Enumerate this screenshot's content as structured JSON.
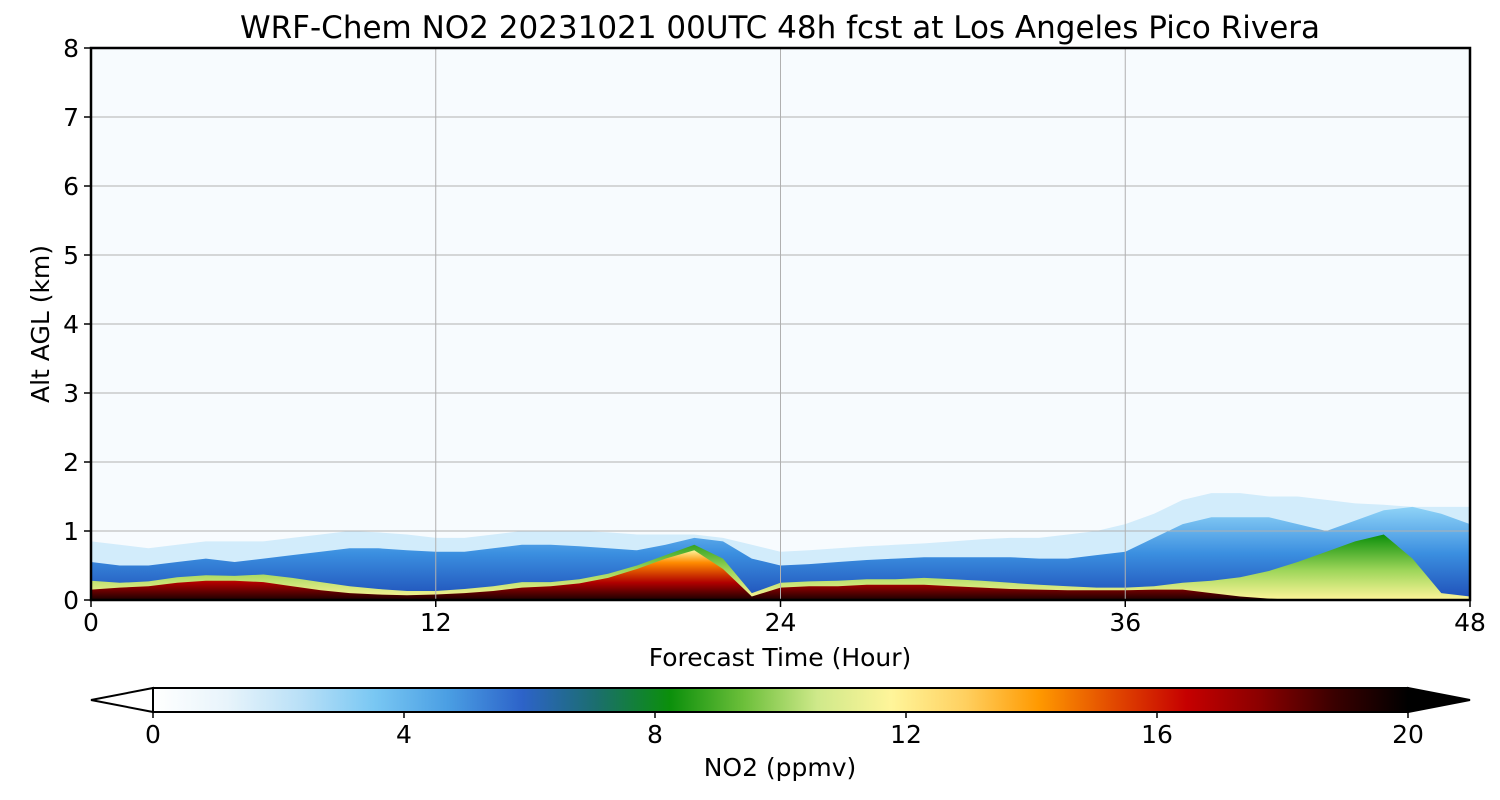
{
  "chart_data": {
    "type": "heatmap",
    "title": "WRF-Chem NO2  20231021 00UTC 48h fcst at Los Angeles Pico Rivera",
    "xlabel": "Forecast Time (Hour)",
    "ylabel": "Alt AGL (km)",
    "xlim": [
      0,
      48
    ],
    "ylim": [
      0,
      8
    ],
    "xticks": [
      0,
      12,
      24,
      36,
      48
    ],
    "yticks": [
      0,
      1,
      2,
      3,
      4,
      5,
      6,
      7,
      8
    ],
    "grid": true,
    "colorbar": {
      "label": "NO2  (ppmv)",
      "range": [
        0,
        20
      ],
      "ticks": [
        0,
        4,
        8,
        12,
        16,
        20
      ],
      "extend": "both",
      "colors": [
        "#ffffff",
        "#e8f4fb",
        "#b9e0f7",
        "#79c7f3",
        "#4a9ee3",
        "#2d63c9",
        "#1b6e6e",
        "#0b8f0b",
        "#6cbf3a",
        "#cfe98a",
        "#fff59a",
        "#ffd060",
        "#ff9900",
        "#e24a00",
        "#c60000",
        "#8a0000",
        "#3a0000",
        "#000000"
      ]
    },
    "background_color": "#f7fbfe",
    "series": [
      {
        "name": "layer_top",
        "x": [
          0,
          1,
          2,
          3,
          4,
          5,
          6,
          7,
          8,
          9,
          10,
          11,
          12,
          13,
          14,
          15,
          16,
          17,
          18,
          19,
          20,
          21,
          22,
          23,
          24,
          25,
          26,
          27,
          28,
          29,
          30,
          31,
          32,
          33,
          34,
          35,
          36,
          37,
          38,
          39,
          40,
          41,
          42,
          43,
          44,
          45,
          46,
          47,
          48
        ],
        "values": [
          0.85,
          0.8,
          0.75,
          0.8,
          0.85,
          0.85,
          0.85,
          0.9,
          0.95,
          1.0,
          0.98,
          0.95,
          0.9,
          0.9,
          0.95,
          1.0,
          1.0,
          1.0,
          0.98,
          0.95,
          0.95,
          0.95,
          0.9,
          0.8,
          0.7,
          0.72,
          0.75,
          0.78,
          0.8,
          0.82,
          0.85,
          0.88,
          0.9,
          0.9,
          0.95,
          1.0,
          1.1,
          1.25,
          1.45,
          1.55,
          1.55,
          1.5,
          1.5,
          1.45,
          1.4,
          1.38,
          1.35,
          1.35,
          1.35
        ]
      },
      {
        "name": "blue_core_top",
        "x": [
          0,
          1,
          2,
          3,
          4,
          5,
          6,
          7,
          8,
          9,
          10,
          11,
          12,
          13,
          14,
          15,
          16,
          17,
          18,
          19,
          20,
          21,
          22,
          23,
          24,
          25,
          26,
          27,
          28,
          29,
          30,
          31,
          32,
          33,
          34,
          35,
          36,
          37,
          38,
          39,
          40,
          41,
          42,
          43,
          44,
          45,
          46,
          47,
          48
        ],
        "values": [
          0.55,
          0.5,
          0.5,
          0.55,
          0.6,
          0.55,
          0.6,
          0.65,
          0.7,
          0.75,
          0.75,
          0.72,
          0.7,
          0.7,
          0.75,
          0.8,
          0.8,
          0.78,
          0.75,
          0.72,
          0.8,
          0.9,
          0.85,
          0.6,
          0.5,
          0.52,
          0.55,
          0.58,
          0.6,
          0.62,
          0.62,
          0.62,
          0.62,
          0.6,
          0.6,
          0.65,
          0.7,
          0.9,
          1.1,
          1.2,
          1.2,
          1.2,
          1.1,
          1.0,
          1.15,
          1.3,
          1.35,
          1.25,
          1.1
        ]
      },
      {
        "name": "green_band_top",
        "x": [
          0,
          1,
          2,
          3,
          4,
          5,
          6,
          7,
          8,
          9,
          10,
          11,
          12,
          13,
          14,
          15,
          16,
          17,
          18,
          19,
          20,
          21,
          22,
          23,
          24,
          25,
          26,
          27,
          28,
          29,
          30,
          31,
          32,
          33,
          34,
          35,
          36,
          37,
          38,
          39,
          40,
          41,
          42,
          43,
          44,
          45,
          46,
          47,
          48
        ],
        "values": [
          0.28,
          0.25,
          0.27,
          0.33,
          0.36,
          0.35,
          0.37,
          0.32,
          0.26,
          0.2,
          0.16,
          0.13,
          0.13,
          0.16,
          0.2,
          0.26,
          0.26,
          0.3,
          0.38,
          0.5,
          0.65,
          0.8,
          0.6,
          0.1,
          0.25,
          0.27,
          0.28,
          0.3,
          0.3,
          0.32,
          0.3,
          0.28,
          0.25,
          0.22,
          0.2,
          0.18,
          0.18,
          0.2,
          0.25,
          0.28,
          0.33,
          0.42,
          0.55,
          0.7,
          0.85,
          0.95,
          0.6,
          0.1,
          0.05
        ]
      },
      {
        "name": "polluted_core_top",
        "x": [
          0,
          1,
          2,
          3,
          4,
          5,
          6,
          7,
          8,
          9,
          10,
          11,
          12,
          13,
          14,
          15,
          16,
          17,
          18,
          19,
          20,
          21,
          22,
          23,
          24,
          25,
          26,
          27,
          28,
          29,
          30,
          31,
          32,
          33,
          34,
          35,
          36,
          37,
          38,
          39,
          40,
          41,
          42,
          43,
          44,
          45,
          46,
          47,
          48
        ],
        "values": [
          0.15,
          0.18,
          0.2,
          0.25,
          0.28,
          0.28,
          0.26,
          0.2,
          0.14,
          0.1,
          0.08,
          0.07,
          0.08,
          0.1,
          0.13,
          0.18,
          0.2,
          0.24,
          0.32,
          0.45,
          0.6,
          0.72,
          0.45,
          0.05,
          0.18,
          0.2,
          0.2,
          0.22,
          0.22,
          0.22,
          0.2,
          0.18,
          0.16,
          0.15,
          0.14,
          0.14,
          0.14,
          0.15,
          0.15,
          0.1,
          0.05,
          0.02,
          0,
          0,
          0,
          0,
          0,
          0,
          0
        ]
      }
    ]
  }
}
